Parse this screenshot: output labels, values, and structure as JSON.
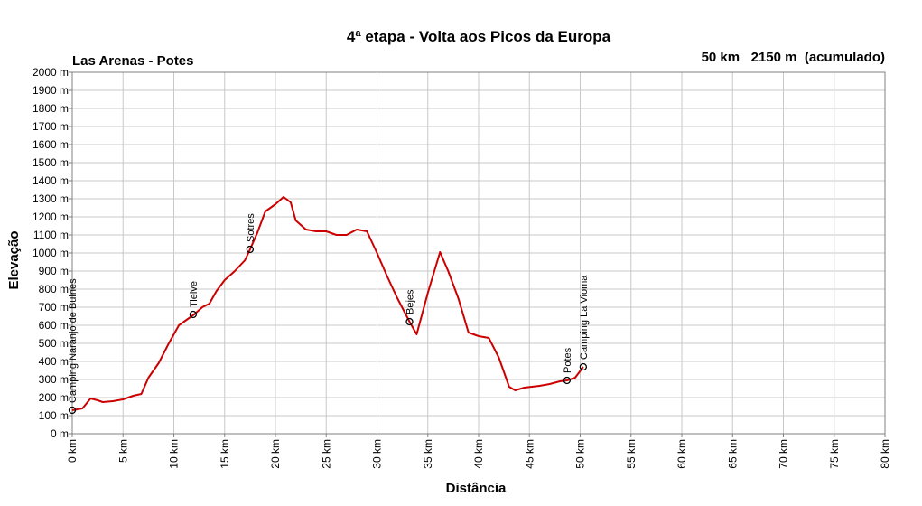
{
  "chart_data": {
    "type": "line",
    "title": "4ª etapa - Volta aos Picos da Europa",
    "subtitle_left": "Las Arenas - Potes",
    "subtitle_right": "50 km   2150 m  (acumulado)",
    "xlabel": "Distância",
    "ylabel": "Elevação",
    "xlim": [
      0,
      80
    ],
    "ylim": [
      0,
      2000
    ],
    "grid": true,
    "line_color": "#cc0000",
    "x_ticks": [
      "0 km",
      "5 km",
      "10 km",
      "15 km",
      "20 km",
      "25 km",
      "30 km",
      "35 km",
      "40 km",
      "45 km",
      "50 km",
      "55 km",
      "60 km",
      "65 km",
      "70 km",
      "75 km",
      "80 km"
    ],
    "y_ticks": [
      "0 m",
      "100 m",
      "200 m",
      "300 m",
      "400 m",
      "500 m",
      "600 m",
      "700 m",
      "800 m",
      "900 m",
      "1000 m",
      "1100 m",
      "1200 m",
      "1300 m",
      "1400 m",
      "1500 m",
      "1600 m",
      "1700 m",
      "1800 m",
      "1900 m",
      "2000 m"
    ],
    "series": [
      {
        "x": [
          0,
          1.0,
          1.8,
          2.5,
          3.0,
          4.0,
          5.0,
          6.0,
          6.8,
          7.5,
          8.5,
          9.5,
          10.5,
          11.5,
          12.0,
          12.8,
          13.5,
          14.2,
          15.0,
          16.0,
          17.0,
          17.5,
          18.2,
          19.0,
          20.0,
          20.8,
          21.5,
          22.0,
          23.0,
          24.0,
          25.0,
          26.0,
          27.0,
          28.0,
          29.0,
          30.0,
          31.0,
          32.0,
          33.2,
          33.9,
          35.0,
          36.2,
          37.0,
          38.0,
          39.0,
          40.0,
          41.0,
          42.0,
          43.0,
          43.6,
          44.5,
          46.0,
          47.0,
          48.0,
          48.7,
          49.5,
          50.3
        ],
        "y": [
          130,
          140,
          195,
          185,
          175,
          180,
          190,
          210,
          220,
          310,
          390,
          500,
          600,
          640,
          660,
          700,
          720,
          790,
          850,
          900,
          960,
          1020,
          1110,
          1230,
          1270,
          1310,
          1280,
          1180,
          1130,
          1120,
          1120,
          1100,
          1100,
          1130,
          1120,
          1000,
          870,
          750,
          620,
          550,
          780,
          1005,
          900,
          750,
          560,
          540,
          530,
          420,
          260,
          240,
          255,
          265,
          275,
          290,
          295,
          310,
          370
        ]
      }
    ],
    "waypoints": [
      {
        "name": "Camping Naranjo de Bulnes",
        "x": 0,
        "y": 130
      },
      {
        "name": "Tielve",
        "x": 11.9,
        "y": 660
      },
      {
        "name": "Sotres",
        "x": 17.5,
        "y": 1020
      },
      {
        "name": "Bejes",
        "x": 33.2,
        "y": 620
      },
      {
        "name": "Potes",
        "x": 48.7,
        "y": 295
      },
      {
        "name": "Camping La Vioma",
        "x": 50.3,
        "y": 370
      }
    ]
  }
}
